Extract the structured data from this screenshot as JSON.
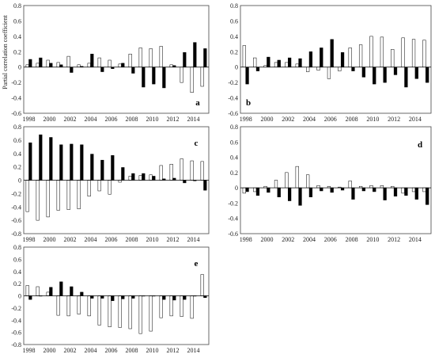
{
  "ylabel": "Partial correlation coefficient",
  "chart_data": [
    {
      "panel": "a",
      "type": "bar",
      "ylim": [
        -0.6,
        0.8
      ],
      "yticks": [
        -0.6,
        -0.4,
        -0.2,
        0,
        0.2,
        0.4,
        0.6,
        0.8
      ],
      "xtick_labels": [
        "1998",
        "2000",
        "2002",
        "2004",
        "2006",
        "2008",
        "2010",
        "2012",
        "2014"
      ],
      "categories": [
        "1998",
        "1999",
        "2000",
        "2001",
        "2002",
        "2003",
        "2004",
        "2005",
        "2006",
        "2007",
        "2008",
        "2009",
        "2010",
        "2011",
        "2012",
        "2013",
        "2014",
        "2015"
      ],
      "series": [
        {
          "fill": "#ffffff",
          "values": [
            0.03,
            0.05,
            0.09,
            0.06,
            0.14,
            0.03,
            0.05,
            0.12,
            0.09,
            0.04,
            0.17,
            0.25,
            0.24,
            0.27,
            0.03,
            -0.2,
            -0.33,
            -0.25
          ]
        },
        {
          "fill": "#000000",
          "values": [
            0.1,
            0.12,
            0.05,
            0.03,
            -0.07,
            0.01,
            0.17,
            -0.06,
            -0.02,
            0.05,
            -0.08,
            -0.26,
            -0.22,
            -0.27,
            0.02,
            0.19,
            0.32,
            0.24
          ]
        }
      ]
    },
    {
      "panel": "b",
      "type": "bar",
      "ylim": [
        -0.6,
        0.8
      ],
      "yticks": [
        -0.6,
        -0.4,
        -0.2,
        0,
        0.2,
        0.4,
        0.6,
        0.8
      ],
      "xtick_labels": [
        "1998",
        "2000",
        "2002",
        "2004",
        "2006",
        "2008",
        "2010",
        "2012",
        "2014"
      ],
      "categories": [
        "1998",
        "1999",
        "2000",
        "2001",
        "2002",
        "2003",
        "2004",
        "2005",
        "2006",
        "2007",
        "2008",
        "2009",
        "2010",
        "2011",
        "2012",
        "2013",
        "2014",
        "2015"
      ],
      "series": [
        {
          "fill": "#ffffff",
          "values": [
            0.28,
            0.12,
            0.02,
            0.06,
            0.06,
            0.04,
            -0.06,
            -0.04,
            -0.15,
            -0.05,
            0.25,
            0.29,
            0.4,
            0.39,
            0.23,
            0.38,
            0.36,
            0.35
          ]
        },
        {
          "fill": "#000000",
          "values": [
            -0.22,
            -0.05,
            0.13,
            0.09,
            0.12,
            0.11,
            0.2,
            0.25,
            0.36,
            0.19,
            -0.05,
            -0.13,
            -0.22,
            -0.2,
            -0.1,
            -0.26,
            -0.15,
            -0.2
          ]
        }
      ]
    },
    {
      "panel": "c",
      "type": "bar",
      "ylim": [
        -0.8,
        0.8
      ],
      "yticks": [
        -0.8,
        -0.6,
        -0.4,
        -0.2,
        0,
        0.2,
        0.4,
        0.6,
        0.8
      ],
      "xtick_labels": [
        "1998",
        "2000",
        "2002",
        "2004",
        "2006",
        "2008",
        "2010",
        "2012",
        "2014"
      ],
      "categories": [
        "1998",
        "1999",
        "2000",
        "2001",
        "2002",
        "2003",
        "2004",
        "2005",
        "2006",
        "2007",
        "2008",
        "2009",
        "2010",
        "2011",
        "2012",
        "2013",
        "2014",
        "2015"
      ],
      "series": [
        {
          "fill": "#ffffff",
          "values": [
            -0.47,
            -0.6,
            -0.55,
            -0.45,
            -0.44,
            -0.43,
            -0.24,
            -0.16,
            -0.21,
            -0.03,
            0.06,
            0.07,
            0.08,
            0.22,
            0.24,
            0.32,
            0.29,
            0.28
          ]
        },
        {
          "fill": "#000000",
          "values": [
            0.56,
            0.68,
            0.64,
            0.53,
            0.54,
            0.53,
            0.39,
            0.3,
            0.37,
            0.19,
            0.1,
            0.1,
            0.06,
            0.02,
            0.03,
            -0.04,
            -0.01,
            -0.15
          ]
        }
      ]
    },
    {
      "panel": "d",
      "type": "bar",
      "ylim": [
        -0.6,
        0.8
      ],
      "yticks": [
        -0.6,
        -0.4,
        -0.2,
        0,
        0.2,
        0.4,
        0.6,
        0.8
      ],
      "xtick_labels": [
        "1998",
        "2000",
        "2002",
        "2004",
        "2006",
        "2008",
        "2010",
        "2012",
        "2014"
      ],
      "categories": [
        "1998",
        "1999",
        "2000",
        "2001",
        "2002",
        "2003",
        "2004",
        "2005",
        "2006",
        "2007",
        "2008",
        "2009",
        "2010",
        "2011",
        "2012",
        "2013",
        "2014",
        "2015"
      ],
      "series": [
        {
          "fill": "#ffffff",
          "values": [
            -0.07,
            -0.05,
            0.02,
            0.1,
            0.2,
            0.28,
            0.17,
            0.03,
            0.02,
            0.01,
            0.09,
            0.02,
            0.03,
            0.03,
            0.02,
            -0.07,
            -0.05,
            -0.05
          ]
        },
        {
          "fill": "#000000",
          "values": [
            -0.05,
            -0.1,
            -0.06,
            -0.12,
            -0.17,
            -0.23,
            -0.12,
            -0.04,
            -0.06,
            -0.03,
            -0.15,
            -0.04,
            -0.05,
            -0.16,
            -0.11,
            -0.1,
            -0.15,
            -0.22
          ]
        }
      ]
    },
    {
      "panel": "e",
      "type": "bar",
      "ylim": [
        -0.8,
        0.8
      ],
      "yticks": [
        -0.8,
        -0.6,
        -0.4,
        -0.2,
        0,
        0.2,
        0.4,
        0.6,
        0.8
      ],
      "xtick_labels": [
        "1998",
        "2000",
        "2002",
        "2004",
        "2006",
        "2008",
        "2010",
        "2012",
        "2014"
      ],
      "categories": [
        "1998",
        "1999",
        "2000",
        "2001",
        "2002",
        "2003",
        "2004",
        "2005",
        "2006",
        "2007",
        "2008",
        "2009",
        "2010",
        "2011",
        "2012",
        "2013",
        "2014",
        "2015"
      ],
      "series": [
        {
          "fill": "#ffffff",
          "values": [
            0.17,
            0.15,
            0.06,
            -0.32,
            -0.33,
            -0.3,
            -0.33,
            -0.48,
            -0.51,
            -0.52,
            -0.54,
            -0.62,
            -0.58,
            -0.36,
            -0.33,
            -0.34,
            -0.37,
            0.35
          ]
        },
        {
          "fill": "#000000",
          "values": [
            -0.06,
            0.0,
            0.14,
            0.23,
            0.15,
            0.06,
            -0.04,
            -0.04,
            -0.08,
            -0.05,
            -0.04,
            0.0,
            0.0,
            -0.06,
            -0.07,
            -0.06,
            0.0,
            -0.03
          ]
        }
      ]
    }
  ]
}
